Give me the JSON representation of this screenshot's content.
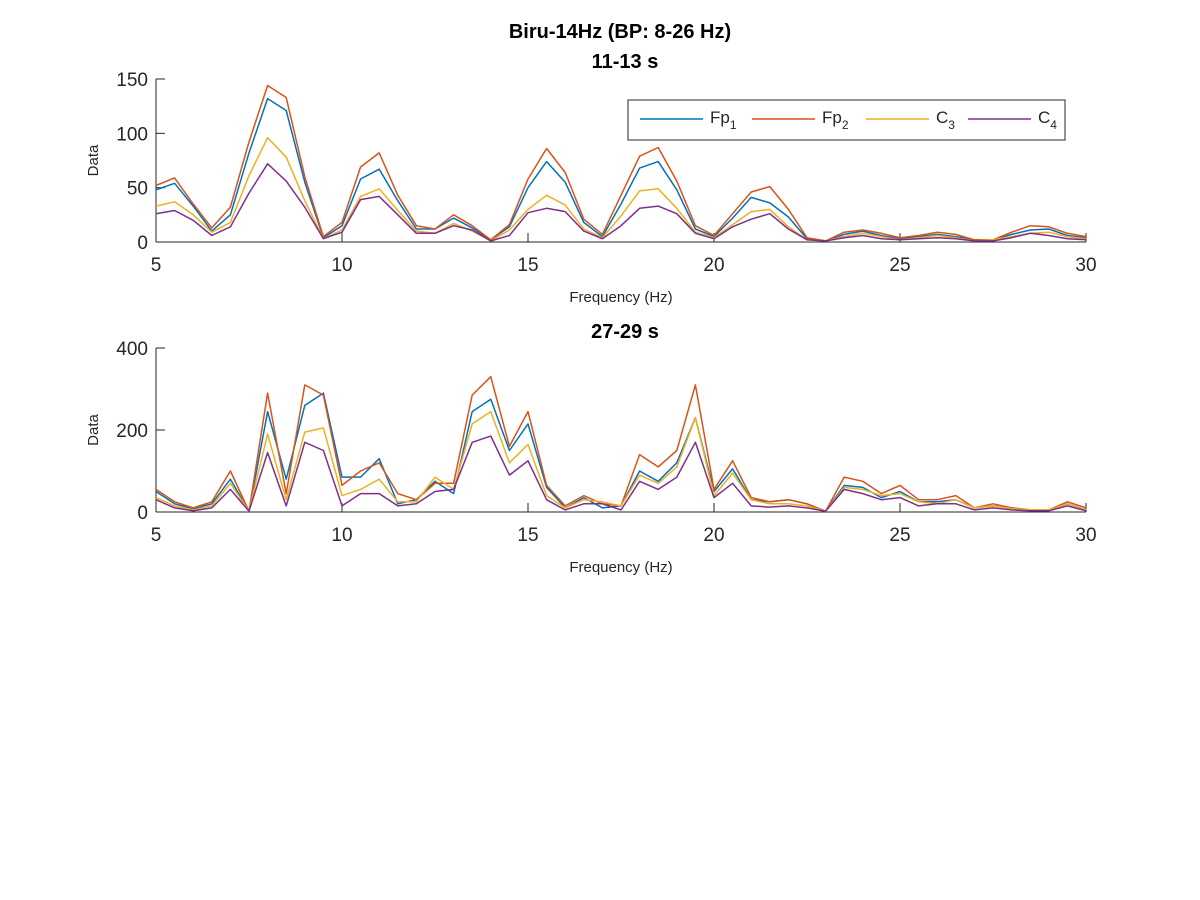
{
  "figure": {
    "title": "Biru-14Hz (BP: 8-26 Hz)"
  },
  "legend": {
    "placement": "top-right of first panel",
    "entries": [
      {
        "base": "Fp",
        "sub": "1",
        "color": "#0072BD"
      },
      {
        "base": "Fp",
        "sub": "2",
        "color": "#D95319"
      },
      {
        "base": "C",
        "sub": "3",
        "color": "#EDB120"
      },
      {
        "base": "C",
        "sub": "4",
        "color": "#7E2F8E"
      }
    ]
  },
  "chart_data": [
    {
      "type": "line",
      "title": "11-13 s",
      "xlabel": "Frequency (Hz)",
      "ylabel": "Data",
      "xlim": [
        5,
        30
      ],
      "ylim": [
        0,
        150
      ],
      "xticks": [
        5,
        10,
        15,
        20,
        25,
        30
      ],
      "yticks": [
        0,
        50,
        100,
        150
      ],
      "grid": false,
      "x": [
        5,
        5.5,
        6,
        6.5,
        7,
        7.5,
        8,
        8.5,
        9,
        9.5,
        10,
        10.5,
        11,
        11.5,
        12,
        12.5,
        13,
        13.5,
        14,
        14.5,
        15,
        15.5,
        16,
        16.5,
        17,
        17.5,
        18,
        18.5,
        19,
        19.5,
        20,
        20.5,
        21,
        21.5,
        22,
        22.5,
        23,
        23.5,
        24,
        24.5,
        25,
        25.5,
        26,
        26.5,
        27,
        27.5,
        28,
        28.5,
        29,
        29.5,
        30
      ],
      "series": [
        {
          "name": "Fp1",
          "values": [
            48,
            54,
            33,
            10,
            25,
            82,
            132,
            121,
            55,
            4,
            15,
            58,
            67,
            38,
            12,
            12,
            22,
            13,
            2,
            14,
            50,
            74,
            55,
            18,
            5,
            35,
            68,
            74,
            48,
            12,
            5,
            22,
            41,
            36,
            23,
            3,
            1,
            7,
            10,
            6,
            3,
            5,
            7,
            5,
            2,
            2,
            7,
            11,
            12,
            6,
            4
          ]
        },
        {
          "name": "Fp2",
          "values": [
            52,
            59,
            35,
            13,
            32,
            92,
            144,
            133,
            60,
            5,
            18,
            69,
            82,
            43,
            15,
            12,
            25,
            15,
            2,
            16,
            58,
            86,
            64,
            21,
            7,
            43,
            79,
            87,
            56,
            15,
            6,
            26,
            46,
            51,
            30,
            4,
            1,
            9,
            11,
            8,
            4,
            6,
            9,
            7,
            2,
            2,
            9,
            15,
            14,
            8,
            5
          ]
        },
        {
          "name": "C3",
          "values": [
            33,
            37,
            25,
            9,
            18,
            61,
            96,
            78,
            38,
            3,
            11,
            42,
            49,
            29,
            10,
            8,
            17,
            10,
            1,
            11,
            30,
            43,
            34,
            12,
            4,
            24,
            47,
            49,
            31,
            9,
            4,
            16,
            28,
            30,
            14,
            2,
            1,
            5,
            8,
            5,
            2,
            4,
            6,
            4,
            1,
            2,
            5,
            8,
            9,
            5,
            3
          ]
        },
        {
          "name": "C4",
          "values": [
            26,
            29,
            20,
            6,
            14,
            45,
            72,
            56,
            32,
            3,
            9,
            39,
            42,
            25,
            8,
            8,
            15,
            11,
            1,
            6,
            27,
            31,
            28,
            10,
            3,
            15,
            31,
            33,
            26,
            8,
            3,
            14,
            21,
            26,
            12,
            2,
            1,
            4,
            6,
            3,
            2,
            3,
            4,
            3,
            1,
            1,
            4,
            8,
            6,
            3,
            2
          ]
        }
      ]
    },
    {
      "type": "line",
      "title": "27-29 s",
      "xlabel": "Frequency (Hz)",
      "ylabel": "Data",
      "xlim": [
        5,
        30
      ],
      "ylim": [
        0,
        400
      ],
      "xticks": [
        5,
        10,
        15,
        20,
        25,
        30
      ],
      "yticks": [
        0,
        200,
        400
      ],
      "grid": false,
      "x": [
        5,
        5.5,
        6,
        6.5,
        7,
        7.5,
        8,
        8.5,
        9,
        9.5,
        10,
        10.5,
        11,
        11.5,
        12,
        12.5,
        13,
        13.5,
        14,
        14.5,
        15,
        15.5,
        16,
        16.5,
        17,
        17.5,
        18,
        18.5,
        19,
        19.5,
        20,
        20.5,
        21,
        21.5,
        22,
        22.5,
        23,
        23.5,
        24,
        24.5,
        25,
        25.5,
        26,
        26.5,
        27,
        27.5,
        28,
        28.5,
        29,
        29.5,
        30
      ],
      "series": [
        {
          "name": "Fp1",
          "values": [
            50,
            20,
            8,
            20,
            80,
            2,
            245,
            80,
            260,
            290,
            85,
            85,
            130,
            20,
            30,
            75,
            45,
            245,
            275,
            150,
            215,
            60,
            10,
            35,
            10,
            15,
            100,
            75,
            120,
            230,
            50,
            105,
            30,
            25,
            30,
            20,
            2,
            65,
            60,
            35,
            50,
            25,
            25,
            30,
            10,
            15,
            10,
            5,
            5,
            20,
            5
          ]
        },
        {
          "name": "Fp2",
          "values": [
            55,
            25,
            10,
            25,
            100,
            2,
            290,
            45,
            310,
            285,
            65,
            100,
            120,
            45,
            30,
            70,
            70,
            285,
            330,
            160,
            245,
            65,
            15,
            40,
            20,
            15,
            140,
            110,
            150,
            310,
            55,
            125,
            35,
            25,
            30,
            20,
            2,
            85,
            75,
            45,
            65,
            30,
            30,
            40,
            10,
            20,
            10,
            5,
            5,
            25,
            10
          ]
        },
        {
          "name": "C3",
          "values": [
            35,
            15,
            5,
            15,
            70,
            2,
            190,
            30,
            195,
            205,
            40,
            55,
            80,
            25,
            25,
            85,
            55,
            215,
            245,
            120,
            165,
            40,
            10,
            30,
            25,
            15,
            90,
            70,
            110,
            230,
            40,
            95,
            30,
            20,
            20,
            15,
            2,
            60,
            55,
            40,
            45,
            25,
            20,
            30,
            10,
            15,
            8,
            5,
            5,
            20,
            5
          ]
        },
        {
          "name": "C4",
          "values": [
            30,
            10,
            3,
            10,
            55,
            2,
            145,
            15,
            170,
            150,
            15,
            45,
            45,
            15,
            20,
            50,
            55,
            170,
            185,
            90,
            125,
            30,
            5,
            20,
            20,
            5,
            75,
            55,
            85,
            170,
            35,
            70,
            15,
            12,
            15,
            10,
            2,
            55,
            45,
            30,
            35,
            15,
            20,
            20,
            5,
            10,
            5,
            3,
            3,
            15,
            3
          ]
        }
      ]
    }
  ]
}
